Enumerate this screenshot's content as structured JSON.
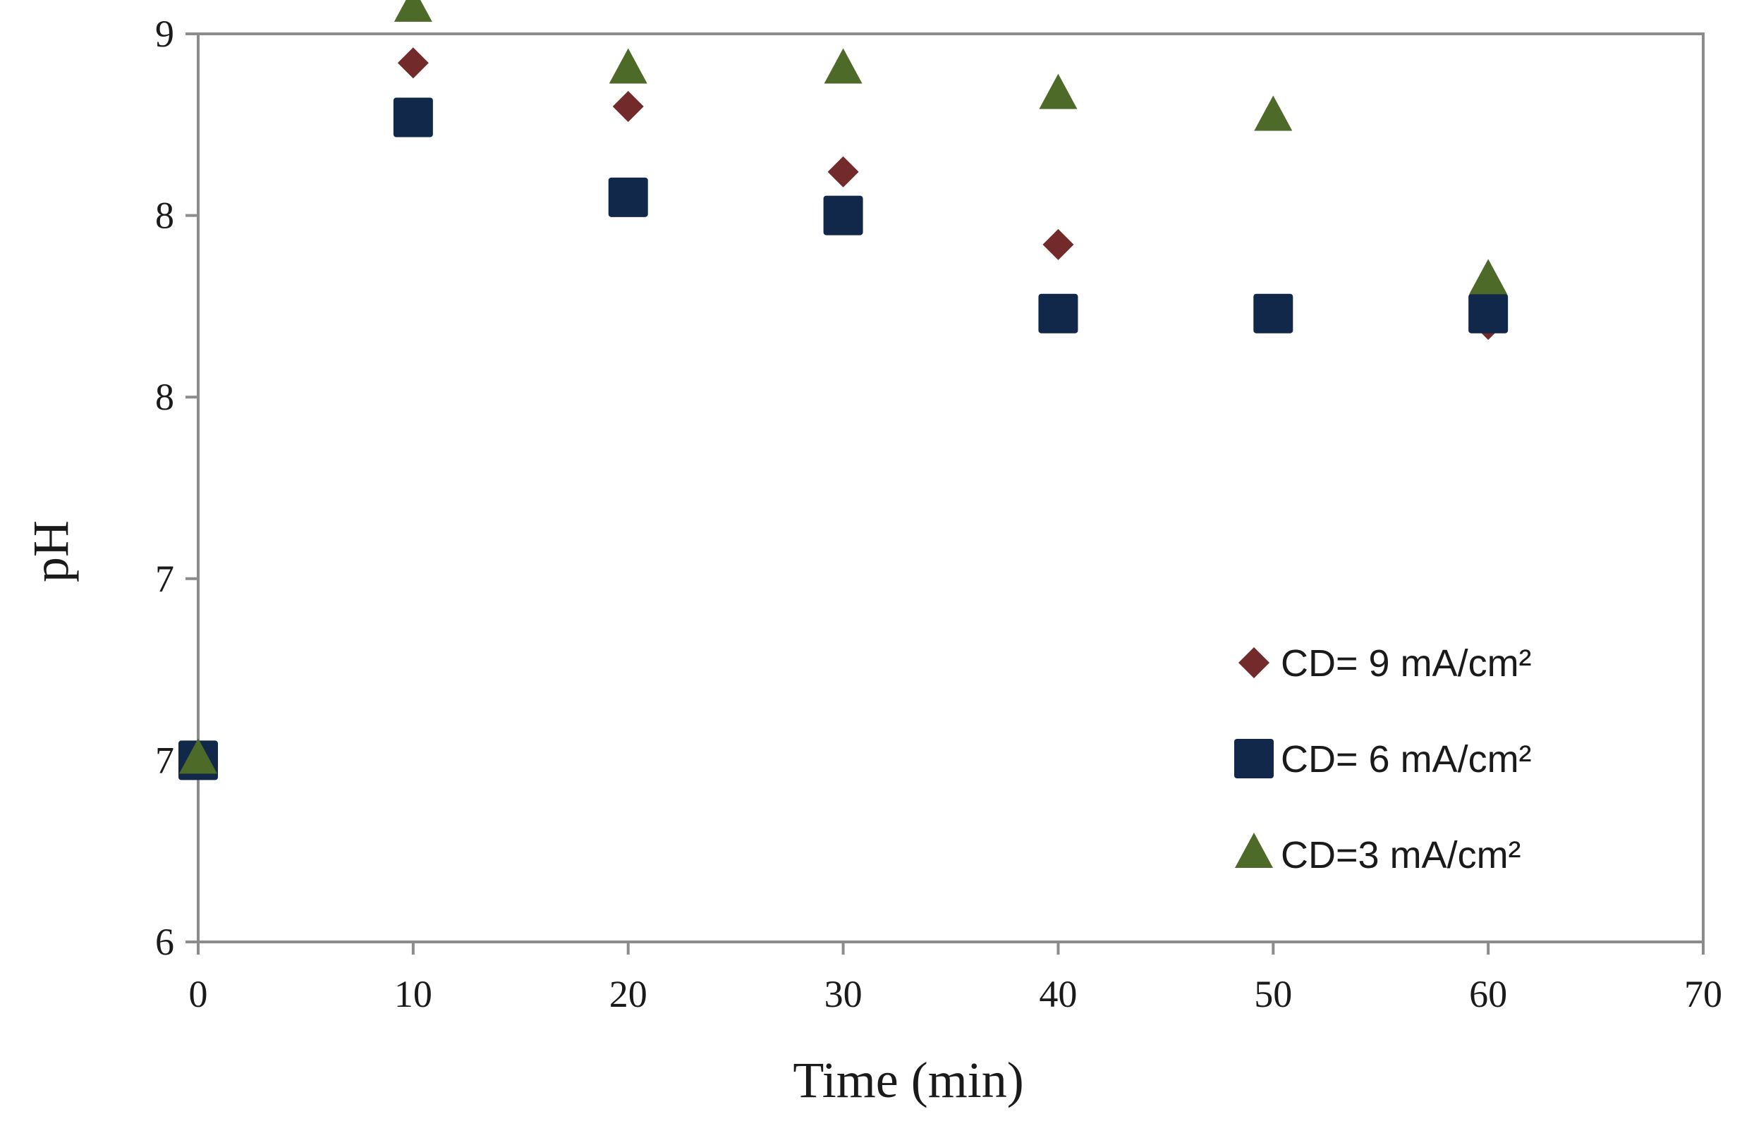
{
  "chart_data": {
    "type": "scatter",
    "xlabel": "Time (min)",
    "ylabel": "pH",
    "xlim": [
      0,
      70
    ],
    "x_ticks": [
      0,
      10,
      20,
      30,
      40,
      50,
      60,
      70
    ],
    "y_tick_positions": [
      6,
      6.5,
      7,
      7.5,
      8,
      8.5
    ],
    "y_tick_labels": [
      "6",
      "7",
      "7",
      "8",
      "8",
      "9"
    ],
    "ylim": [
      6,
      8.5
    ],
    "grid": false,
    "legend_position": "right",
    "series": [
      {
        "name": "CD= 9 mA/cm²",
        "marker": "diamond",
        "color": "#722a2a",
        "points": [
          [
            0,
            6.5
          ],
          [
            10,
            8.42
          ],
          [
            20,
            8.3
          ],
          [
            30,
            8.12
          ],
          [
            40,
            7.92
          ],
          [
            60,
            7.7
          ]
        ]
      },
      {
        "name": "CD= 6 mA/cm²",
        "marker": "square",
        "color": "#12284a",
        "points": [
          [
            0,
            6.5
          ],
          [
            10,
            8.27
          ],
          [
            20,
            8.05
          ],
          [
            30,
            8.0
          ],
          [
            40,
            7.73
          ],
          [
            50,
            7.73
          ],
          [
            60,
            7.73
          ]
        ]
      },
      {
        "name": "CD=3 mA/cm²",
        "marker": "triangle",
        "color": "#4e6a28",
        "points": [
          [
            0,
            6.5
          ],
          [
            10,
            8.57
          ],
          [
            20,
            8.4
          ],
          [
            30,
            8.4
          ],
          [
            40,
            8.33
          ],
          [
            50,
            8.27
          ],
          [
            60,
            7.82
          ]
        ]
      }
    ]
  }
}
